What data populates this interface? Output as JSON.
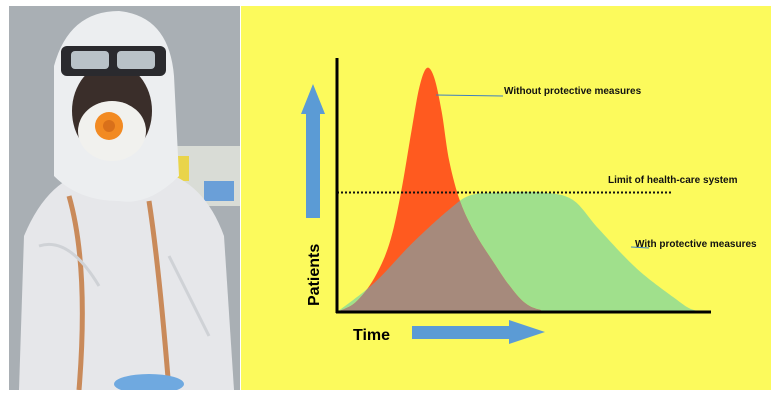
{
  "photo": {
    "subject_icon": "person-in-protective-suit-icon"
  },
  "chart_data": {
    "type": "area",
    "title": "",
    "xlabel": "Time",
    "ylabel": "Patients",
    "xlim": [
      0,
      100
    ],
    "ylim": [
      0,
      100
    ],
    "grid": false,
    "limit_line": {
      "label": "Limit of health-care system",
      "value": 49
    },
    "series": [
      {
        "name": "Without protective measures",
        "color": "#ff5a1f",
        "x": [
          0,
          5,
          10,
          14,
          17,
          20,
          22,
          24,
          26,
          28,
          30,
          33,
          37,
          42,
          46,
          50,
          54,
          60,
          100
        ],
        "y": [
          0,
          4,
          14,
          28,
          48,
          75,
          92,
          100,
          96,
          82,
          62,
          45,
          32,
          20,
          11,
          4,
          1,
          0,
          0
        ]
      },
      {
        "name": "With protective measures",
        "color": "#a0e08c",
        "x": [
          0,
          10,
          20,
          30,
          36,
          45,
          55,
          63,
          70,
          80,
          90,
          95,
          100
        ],
        "y": [
          0,
          12,
          28,
          42,
          48,
          49,
          49,
          46,
          34,
          18,
          6,
          1,
          0
        ]
      }
    ],
    "annotations": [
      {
        "text": "Without protective measures",
        "target_series": 0
      },
      {
        "text": "Limit of health-care system",
        "target": "limit_line"
      },
      {
        "text": "With protective measures",
        "target_series": 1
      }
    ]
  },
  "colors": {
    "background": "#fcfa5c",
    "overlap": "#a68a7c",
    "arrow": "#5b9bd5",
    "axis": "#000000"
  }
}
